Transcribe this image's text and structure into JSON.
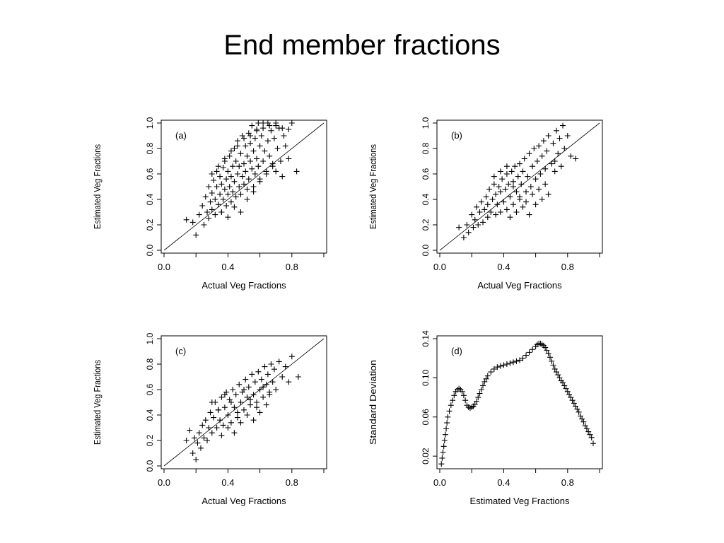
{
  "title": "End member fractions",
  "colors": {
    "ink": "#000000",
    "background": "#ffffff"
  },
  "chart_data": [
    {
      "type": "scatter",
      "panel_label": "(a)",
      "xlabel": "Actual Veg Fractions",
      "ylabel": "Estimated Veg Fractions",
      "xlim": [
        0.0,
        1.0
      ],
      "ylim": [
        0.0,
        1.0
      ],
      "x_ticks": [
        0.0,
        0.4,
        0.8
      ],
      "x_tick_labels": [
        "0.0",
        "0.4",
        "0.8"
      ],
      "y_ticks": [
        0.0,
        0.2,
        0.4,
        0.6,
        0.8,
        1.0
      ],
      "y_tick_labels": [
        "0.0",
        "0.2",
        "0.4",
        "0.6",
        "0.8",
        "1.0"
      ],
      "reference_line": {
        "from": [
          0.0,
          0.0
        ],
        "to": [
          1.0,
          1.0
        ]
      },
      "marker": "+",
      "grid": false,
      "series": [
        {
          "x": [
            0.14,
            0.18,
            0.2,
            0.22,
            0.24,
            0.25,
            0.26,
            0.27,
            0.28,
            0.28,
            0.29,
            0.3,
            0.3,
            0.31,
            0.32,
            0.32,
            0.33,
            0.33,
            0.34,
            0.35,
            0.35,
            0.36,
            0.36,
            0.37,
            0.37,
            0.38,
            0.38,
            0.39,
            0.39,
            0.4,
            0.4,
            0.41,
            0.41,
            0.42,
            0.42,
            0.43,
            0.43,
            0.44,
            0.44,
            0.45,
            0.45,
            0.46,
            0.46,
            0.47,
            0.47,
            0.48,
            0.48,
            0.49,
            0.49,
            0.5,
            0.5,
            0.51,
            0.51,
            0.52,
            0.52,
            0.53,
            0.53,
            0.54,
            0.54,
            0.55,
            0.55,
            0.56,
            0.56,
            0.57,
            0.57,
            0.58,
            0.58,
            0.59,
            0.59,
            0.6,
            0.6,
            0.61,
            0.62,
            0.62,
            0.63,
            0.64,
            0.65,
            0.65,
            0.66,
            0.67,
            0.68,
            0.69,
            0.7,
            0.7,
            0.71,
            0.72,
            0.73,
            0.74,
            0.75,
            0.76,
            0.78,
            0.8,
            0.83,
            0.36,
            0.4,
            0.44,
            0.48,
            0.52,
            0.56,
            0.6,
            0.64,
            0.68,
            0.3,
            0.34,
            0.38,
            0.42,
            0.46,
            0.5,
            0.54,
            0.58,
            0.62,
            0.66,
            0.7,
            0.74,
            0.78
          ],
          "y": [
            0.24,
            0.22,
            0.12,
            0.28,
            0.35,
            0.2,
            0.42,
            0.3,
            0.25,
            0.5,
            0.38,
            0.32,
            0.45,
            0.55,
            0.4,
            0.28,
            0.5,
            0.62,
            0.36,
            0.44,
            0.58,
            0.3,
            0.52,
            0.65,
            0.4,
            0.48,
            0.7,
            0.35,
            0.56,
            0.44,
            0.62,
            0.74,
            0.5,
            0.38,
            0.58,
            0.66,
            0.46,
            0.8,
            0.54,
            0.42,
            0.7,
            0.6,
            0.86,
            0.5,
            0.66,
            0.76,
            0.44,
            0.58,
            0.9,
            0.68,
            0.52,
            0.82,
            0.62,
            0.48,
            0.74,
            0.92,
            0.56,
            0.7,
            0.84,
            0.64,
            0.98,
            0.5,
            0.78,
            0.88,
            0.6,
            0.72,
            0.95,
            0.66,
            1.0,
            0.82,
            0.56,
            0.9,
            0.7,
            1.0,
            0.78,
            0.62,
            0.86,
            1.0,
            0.74,
            0.94,
            0.68,
            0.88,
            0.62,
            1.0,
            0.8,
            0.96,
            0.7,
            0.58,
            0.9,
            0.82,
            0.72,
            1.0,
            0.62,
            0.3,
            0.26,
            0.34,
            0.3,
            0.4,
            0.46,
            0.54,
            0.6,
            0.66,
            0.6,
            0.66,
            0.72,
            0.78,
            0.82,
            0.88,
            0.9,
            0.94,
            0.96,
            0.98,
            0.98,
            0.96,
            0.95
          ]
        }
      ]
    },
    {
      "type": "scatter",
      "panel_label": "(b)",
      "xlabel": "Actual Veg Fractions",
      "ylabel": "Estimated Veg Fractions",
      "xlim": [
        0.0,
        1.0
      ],
      "ylim": [
        0.0,
        1.0
      ],
      "x_ticks": [
        0.0,
        0.4,
        0.8
      ],
      "x_tick_labels": [
        "0.0",
        "0.4",
        "0.8"
      ],
      "y_ticks": [
        0.0,
        0.2,
        0.4,
        0.6,
        0.8,
        1.0
      ],
      "y_tick_labels": [
        "0.0",
        "0.2",
        "0.4",
        "0.6",
        "0.8",
        "1.0"
      ],
      "reference_line": {
        "from": [
          0.0,
          0.0
        ],
        "to": [
          1.0,
          1.0
        ]
      },
      "marker": "+",
      "grid": false,
      "series": [
        {
          "x": [
            0.12,
            0.15,
            0.17,
            0.18,
            0.2,
            0.21,
            0.22,
            0.23,
            0.24,
            0.25,
            0.26,
            0.27,
            0.28,
            0.29,
            0.3,
            0.3,
            0.31,
            0.32,
            0.33,
            0.34,
            0.35,
            0.35,
            0.36,
            0.37,
            0.38,
            0.38,
            0.39,
            0.4,
            0.41,
            0.42,
            0.42,
            0.43,
            0.44,
            0.45,
            0.46,
            0.46,
            0.47,
            0.48,
            0.49,
            0.5,
            0.5,
            0.51,
            0.52,
            0.53,
            0.54,
            0.55,
            0.56,
            0.57,
            0.58,
            0.59,
            0.6,
            0.61,
            0.62,
            0.63,
            0.64,
            0.65,
            0.66,
            0.67,
            0.68,
            0.7,
            0.71,
            0.72,
            0.73,
            0.74,
            0.75,
            0.76,
            0.77,
            0.78,
            0.8,
            0.82,
            0.85,
            0.34,
            0.38,
            0.42,
            0.46,
            0.5,
            0.54,
            0.58,
            0.62,
            0.66,
            0.44,
            0.48,
            0.52,
            0.56,
            0.6,
            0.64,
            0.68,
            0.72
          ],
          "y": [
            0.18,
            0.1,
            0.2,
            0.14,
            0.28,
            0.18,
            0.24,
            0.34,
            0.2,
            0.3,
            0.38,
            0.22,
            0.32,
            0.42,
            0.26,
            0.36,
            0.48,
            0.3,
            0.4,
            0.52,
            0.28,
            0.44,
            0.36,
            0.5,
            0.3,
            0.46,
            0.56,
            0.38,
            0.48,
            0.6,
            0.32,
            0.52,
            0.42,
            0.62,
            0.36,
            0.54,
            0.66,
            0.46,
            0.58,
            0.4,
            0.68,
            0.52,
            0.62,
            0.72,
            0.46,
            0.58,
            0.76,
            0.5,
            0.66,
            0.8,
            0.56,
            0.7,
            0.82,
            0.6,
            0.74,
            0.86,
            0.64,
            0.78,
            0.9,
            0.68,
            0.84,
            0.62,
            0.94,
            0.76,
            0.88,
            0.66,
            0.98,
            0.8,
            0.9,
            0.74,
            0.72,
            0.58,
            0.62,
            0.66,
            0.5,
            0.42,
            0.38,
            0.44,
            0.48,
            0.52,
            0.26,
            0.3,
            0.34,
            0.28,
            0.36,
            0.4,
            0.44,
            0.7
          ]
        }
      ]
    },
    {
      "type": "scatter",
      "panel_label": "(c)",
      "xlabel": "Actual Veg Fractions",
      "ylabel": "Estimated Veg Fractions",
      "xlim": [
        0.0,
        1.0
      ],
      "ylim": [
        0.0,
        1.0
      ],
      "x_ticks": [
        0.0,
        0.4,
        0.8
      ],
      "x_tick_labels": [
        "0.0",
        "0.4",
        "0.8"
      ],
      "y_ticks": [
        0.0,
        0.2,
        0.4,
        0.6,
        0.8,
        1.0
      ],
      "y_tick_labels": [
        "0.0",
        "0.2",
        "0.4",
        "0.6",
        "0.8",
        "1.0"
      ],
      "reference_line": {
        "from": [
          0.0,
          0.0
        ],
        "to": [
          1.0,
          1.0
        ]
      },
      "marker": "+",
      "grid": false,
      "series": [
        {
          "x": [
            0.14,
            0.16,
            0.18,
            0.19,
            0.2,
            0.21,
            0.22,
            0.23,
            0.24,
            0.25,
            0.26,
            0.27,
            0.28,
            0.29,
            0.3,
            0.31,
            0.32,
            0.33,
            0.34,
            0.35,
            0.36,
            0.37,
            0.38,
            0.39,
            0.4,
            0.41,
            0.42,
            0.43,
            0.44,
            0.45,
            0.46,
            0.47,
            0.48,
            0.49,
            0.5,
            0.51,
            0.52,
            0.53,
            0.54,
            0.55,
            0.56,
            0.57,
            0.58,
            0.59,
            0.6,
            0.61,
            0.62,
            0.63,
            0.64,
            0.65,
            0.66,
            0.67,
            0.68,
            0.69,
            0.7,
            0.72,
            0.74,
            0.76,
            0.78,
            0.8,
            0.84,
            0.3,
            0.34,
            0.38,
            0.42,
            0.46,
            0.5,
            0.54,
            0.58,
            0.62,
            0.66,
            0.36,
            0.4,
            0.44,
            0.48,
            0.52,
            0.56,
            0.6,
            0.64
          ],
          "y": [
            0.2,
            0.28,
            0.1,
            0.22,
            0.05,
            0.18,
            0.26,
            0.14,
            0.32,
            0.22,
            0.36,
            0.2,
            0.3,
            0.42,
            0.26,
            0.38,
            0.5,
            0.3,
            0.44,
            0.36,
            0.54,
            0.32,
            0.46,
            0.58,
            0.4,
            0.52,
            0.34,
            0.6,
            0.46,
            0.56,
            0.38,
            0.64,
            0.5,
            0.58,
            0.44,
            0.68,
            0.54,
            0.62,
            0.48,
            0.72,
            0.56,
            0.66,
            0.5,
            0.74,
            0.6,
            0.68,
            0.54,
            0.78,
            0.64,
            0.72,
            0.58,
            0.8,
            0.66,
            0.76,
            0.6,
            0.82,
            0.7,
            0.78,
            0.66,
            0.86,
            0.7,
            0.5,
            0.44,
            0.56,
            0.5,
            0.42,
            0.6,
            0.52,
            0.46,
            0.62,
            0.56,
            0.24,
            0.3,
            0.26,
            0.34,
            0.4,
            0.36,
            0.42,
            0.48
          ]
        }
      ]
    },
    {
      "type": "scatter",
      "panel_label": "(d)",
      "xlabel": "Estimated Veg Fractions",
      "ylabel": "Standard Deviation",
      "xlim": [
        0.0,
        1.0
      ],
      "ylim": [
        0.01,
        0.14
      ],
      "x_ticks": [
        0.0,
        0.4,
        0.8
      ],
      "x_tick_labels": [
        "0.0",
        "0.4",
        "0.8"
      ],
      "y_ticks": [
        0.02,
        0.06,
        0.1,
        0.14
      ],
      "y_tick_labels": [
        "0.02",
        "0.06",
        "0.10",
        "0.14"
      ],
      "marker": "+",
      "grid": false,
      "series": [
        {
          "x": [
            0.01,
            0.015,
            0.02,
            0.025,
            0.03,
            0.035,
            0.04,
            0.045,
            0.05,
            0.06,
            0.07,
            0.08,
            0.09,
            0.1,
            0.11,
            0.12,
            0.13,
            0.14,
            0.15,
            0.16,
            0.17,
            0.18,
            0.19,
            0.2,
            0.21,
            0.22,
            0.23,
            0.24,
            0.25,
            0.26,
            0.27,
            0.28,
            0.29,
            0.3,
            0.32,
            0.34,
            0.36,
            0.38,
            0.4,
            0.42,
            0.44,
            0.46,
            0.48,
            0.5,
            0.52,
            0.54,
            0.56,
            0.58,
            0.6,
            0.61,
            0.62,
            0.63,
            0.64,
            0.65,
            0.66,
            0.67,
            0.68,
            0.69,
            0.7,
            0.71,
            0.72,
            0.73,
            0.74,
            0.75,
            0.76,
            0.77,
            0.78,
            0.79,
            0.8,
            0.81,
            0.82,
            0.83,
            0.84,
            0.85,
            0.86,
            0.87,
            0.88,
            0.89,
            0.9,
            0.91,
            0.92,
            0.93,
            0.94,
            0.95,
            0.96
          ],
          "y": [
            0.012,
            0.018,
            0.024,
            0.03,
            0.036,
            0.042,
            0.048,
            0.054,
            0.06,
            0.066,
            0.072,
            0.077,
            0.082,
            0.086,
            0.088,
            0.089,
            0.088,
            0.086,
            0.082,
            0.077,
            0.072,
            0.07,
            0.069,
            0.07,
            0.071,
            0.073,
            0.076,
            0.08,
            0.084,
            0.088,
            0.092,
            0.096,
            0.099,
            0.102,
            0.106,
            0.109,
            0.111,
            0.112,
            0.113,
            0.114,
            0.115,
            0.116,
            0.117,
            0.118,
            0.12,
            0.123,
            0.126,
            0.129,
            0.132,
            0.134,
            0.135,
            0.135,
            0.134,
            0.133,
            0.131,
            0.128,
            0.125,
            0.121,
            0.117,
            0.113,
            0.109,
            0.106,
            0.103,
            0.1,
            0.097,
            0.095,
            0.092,
            0.089,
            0.086,
            0.083,
            0.08,
            0.077,
            0.074,
            0.071,
            0.068,
            0.065,
            0.061,
            0.058,
            0.055,
            0.051,
            0.048,
            0.045,
            0.042,
            0.039,
            0.033
          ]
        }
      ]
    }
  ]
}
